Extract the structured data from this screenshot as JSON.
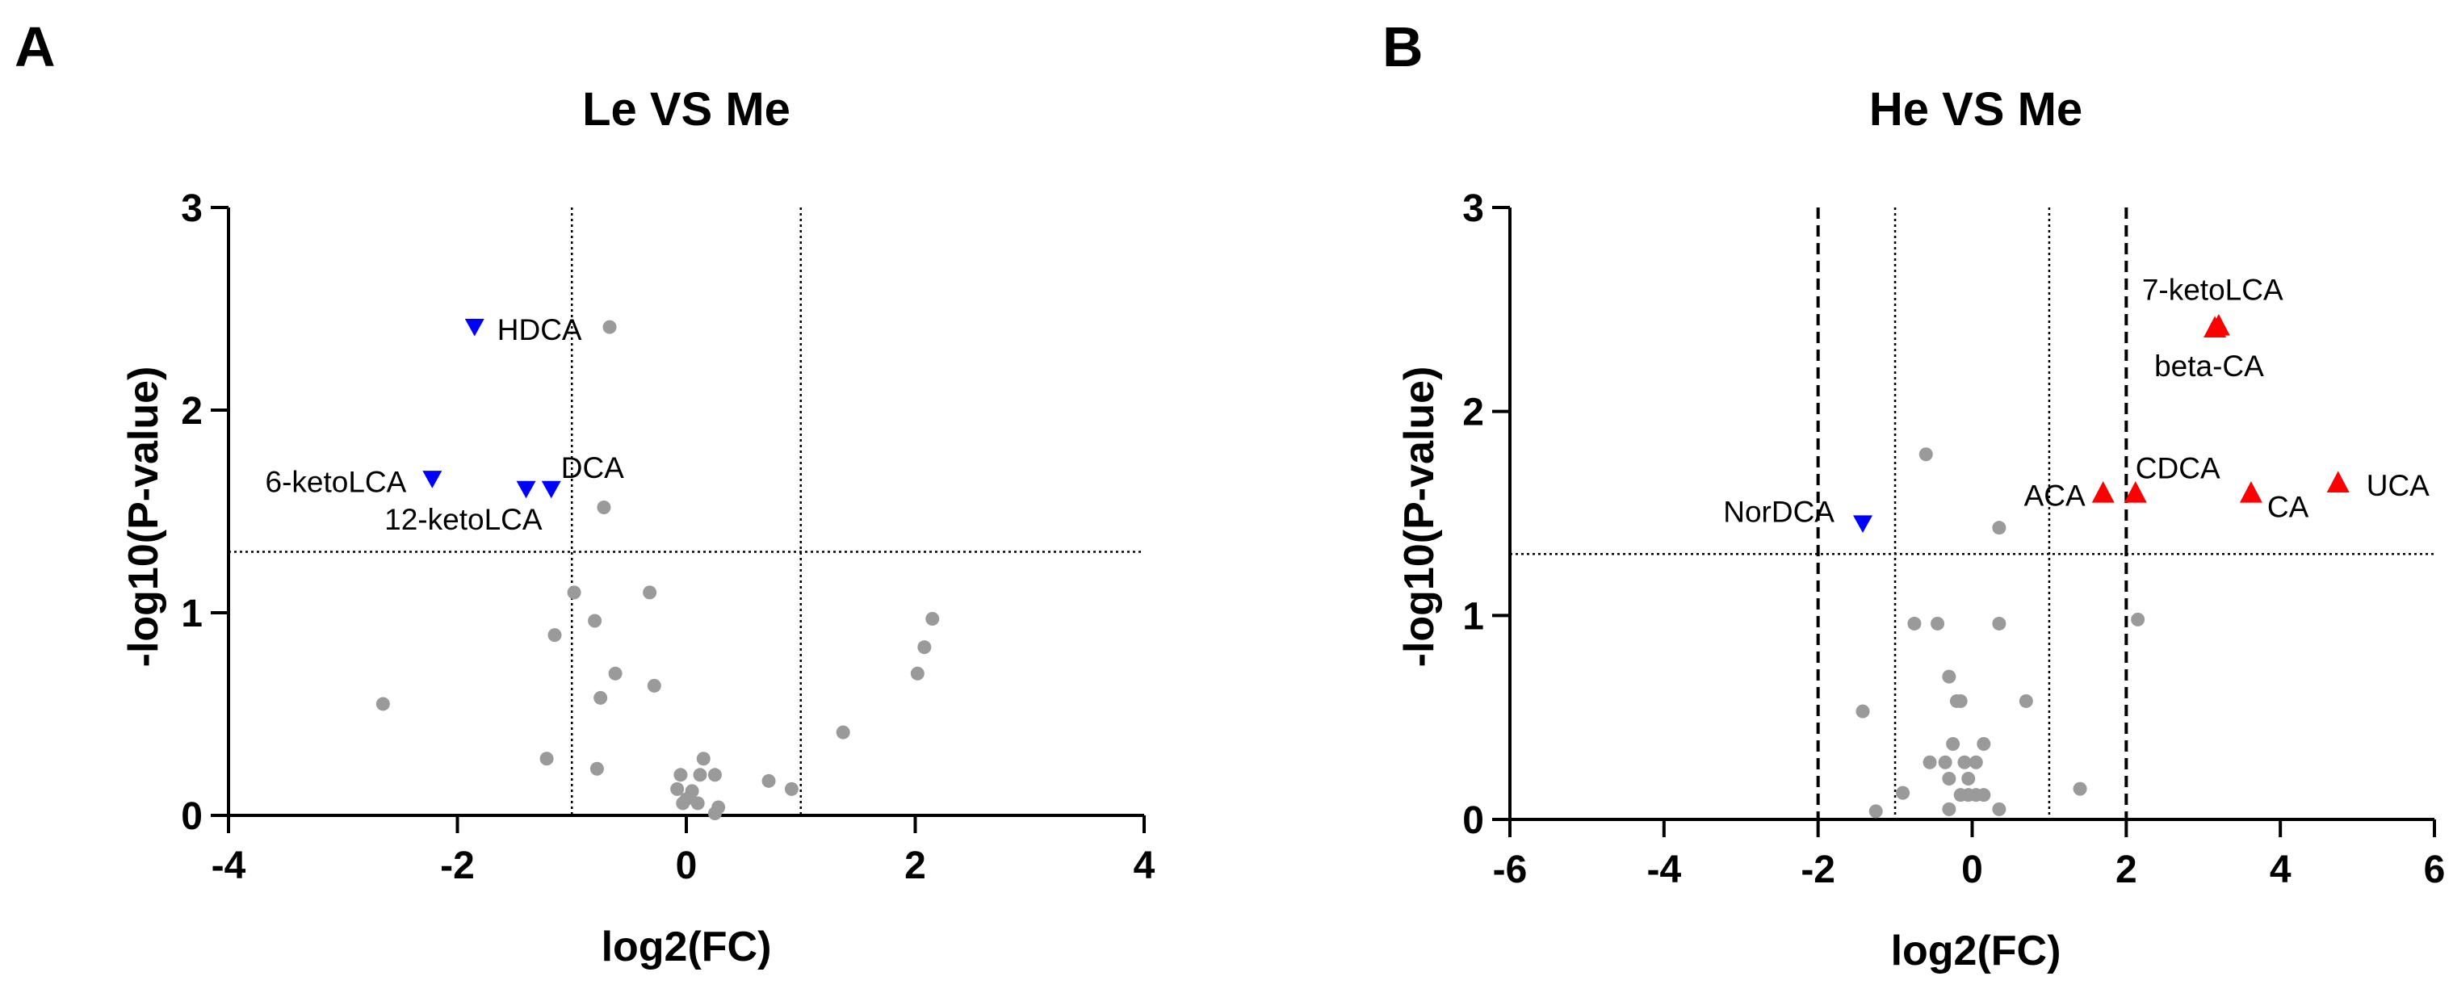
{
  "chart_data": [
    {
      "panel_label": "A",
      "type": "scatter",
      "title": "Le VS Me",
      "xlabel": "log2(FC)",
      "ylabel": "-log10(P-value)",
      "xlim": [
        -4,
        4
      ],
      "ylim": [
        0,
        3
      ],
      "xticks": [
        "-4",
        "-2",
        "0",
        "2",
        "4"
      ],
      "yticks": [
        "0",
        "1",
        "2",
        "3"
      ],
      "thresholds": {
        "dotted_vertical": [
          -1,
          1
        ],
        "dashed_vertical": [],
        "horizontal": 1.301
      },
      "down": [
        {
          "name": "HDCA",
          "x": -1.85,
          "y": 2.41
        },
        {
          "name": "6-ketoLCA",
          "x": -2.22,
          "y": 1.66
        },
        {
          "name": "12-ketoLCA",
          "x": -1.4,
          "y": 1.61
        },
        {
          "name": "DCA",
          "x": -1.18,
          "y": 1.61
        }
      ],
      "up": [],
      "ns": [
        {
          "x": -0.67,
          "y": 2.41
        },
        {
          "x": -0.72,
          "y": 1.52
        },
        {
          "x": -0.98,
          "y": 1.1
        },
        {
          "x": -0.32,
          "y": 1.1
        },
        {
          "x": -0.8,
          "y": 0.96
        },
        {
          "x": -1.15,
          "y": 0.89
        },
        {
          "x": -0.62,
          "y": 0.7
        },
        {
          "x": -0.28,
          "y": 0.64
        },
        {
          "x": -0.75,
          "y": 0.58
        },
        {
          "x": -2.65,
          "y": 0.55
        },
        {
          "x": -1.22,
          "y": 0.28
        },
        {
          "x": -0.78,
          "y": 0.23
        },
        {
          "x": 0.15,
          "y": 0.28
        },
        {
          "x": 0.25,
          "y": 0.2
        },
        {
          "x": 0.12,
          "y": 0.2
        },
        {
          "x": -0.05,
          "y": 0.2
        },
        {
          "x": 0.05,
          "y": 0.12
        },
        {
          "x": -0.08,
          "y": 0.13
        },
        {
          "x": 0.0,
          "y": 0.08
        },
        {
          "x": -0.03,
          "y": 0.06
        },
        {
          "x": 0.1,
          "y": 0.06
        },
        {
          "x": 0.28,
          "y": 0.04
        },
        {
          "x": 0.25,
          "y": 0.01
        },
        {
          "x": 0.72,
          "y": 0.17
        },
        {
          "x": 0.92,
          "y": 0.13
        },
        {
          "x": 1.37,
          "y": 0.41
        },
        {
          "x": 2.15,
          "y": 0.97
        },
        {
          "x": 2.08,
          "y": 0.83
        },
        {
          "x": 2.02,
          "y": 0.7
        }
      ]
    },
    {
      "panel_label": "B",
      "type": "scatter",
      "title": "He VS Me",
      "xlabel": "log2(FC)",
      "ylabel": "-log10(P-value)",
      "xlim": [
        -6,
        6
      ],
      "ylim": [
        0,
        3
      ],
      "xticks": [
        "-6",
        "-4",
        "-2",
        "0",
        "2",
        "4",
        "6"
      ],
      "yticks": [
        "0",
        "1",
        "2",
        "3"
      ],
      "thresholds": {
        "dotted_vertical": [
          -1,
          1
        ],
        "dashed_vertical": [
          -2,
          2
        ],
        "horizontal": 1.301
      },
      "down": [
        {
          "name": "NorDCA",
          "x": -1.42,
          "y": 1.45
        }
      ],
      "up": [
        {
          "name": "7-ketoLCA",
          "x": 3.2,
          "y": 2.42
        },
        {
          "name": "beta-CA",
          "x": 3.15,
          "y": 2.41
        },
        {
          "name": "ACA",
          "x": 1.7,
          "y": 1.6
        },
        {
          "name": "CDCA",
          "x": 2.12,
          "y": 1.6
        },
        {
          "name": "CA",
          "x": 3.62,
          "y": 1.6
        },
        {
          "name": "UCA",
          "x": 4.75,
          "y": 1.65
        }
      ],
      "ns": [
        {
          "x": -0.6,
          "y": 1.79
        },
        {
          "x": 0.35,
          "y": 1.43
        },
        {
          "x": -0.75,
          "y": 0.96
        },
        {
          "x": -0.45,
          "y": 0.96
        },
        {
          "x": 0.35,
          "y": 0.96
        },
        {
          "x": 2.15,
          "y": 0.98
        },
        {
          "x": -0.3,
          "y": 0.7
        },
        {
          "x": -0.15,
          "y": 0.58
        },
        {
          "x": -0.2,
          "y": 0.58
        },
        {
          "x": 0.7,
          "y": 0.58
        },
        {
          "x": -1.42,
          "y": 0.53
        },
        {
          "x": -0.25,
          "y": 0.37
        },
        {
          "x": 0.15,
          "y": 0.37
        },
        {
          "x": -0.55,
          "y": 0.28
        },
        {
          "x": -0.35,
          "y": 0.28
        },
        {
          "x": -0.1,
          "y": 0.28
        },
        {
          "x": 0.05,
          "y": 0.28
        },
        {
          "x": -0.3,
          "y": 0.2
        },
        {
          "x": -0.05,
          "y": 0.2
        },
        {
          "x": -0.15,
          "y": 0.12
        },
        {
          "x": -0.05,
          "y": 0.12
        },
        {
          "x": 0.05,
          "y": 0.12
        },
        {
          "x": 0.15,
          "y": 0.12
        },
        {
          "x": -0.3,
          "y": 0.05
        },
        {
          "x": 0.35,
          "y": 0.05
        },
        {
          "x": -1.25,
          "y": 0.04
        },
        {
          "x": -0.9,
          "y": 0.13
        },
        {
          "x": 1.4,
          "y": 0.15
        }
      ]
    }
  ],
  "colors": {
    "up": "#ff0000",
    "down": "#0000ff",
    "ns": "#9a9a9a",
    "axis": "#000000"
  }
}
